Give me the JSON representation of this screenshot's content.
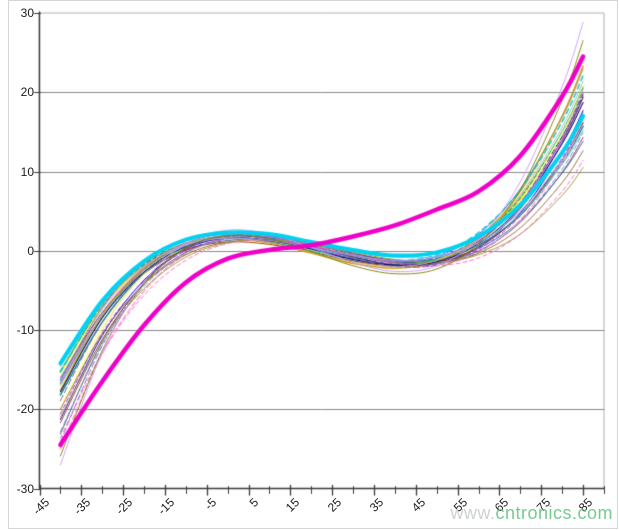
{
  "watermark": {
    "prefix": "www.",
    "main": "cntronics.com",
    "color": "#5fc27e"
  },
  "colors": {
    "background": "#ffffff",
    "plot_border": "#b0b0b0",
    "grid": "#8a8a8a",
    "axis": "#3a3a3a",
    "tick": "#3a3a3a",
    "label": "#1c1c1c",
    "outer_border": "#d6d6d6"
  },
  "chart_data": {
    "type": "line",
    "title": "",
    "xlabel": "",
    "ylabel": "",
    "legend": "none",
    "grid": "horizontal-major",
    "xlim": [
      -45,
      90
    ],
    "ylim": [
      -30,
      30
    ],
    "x_major_tick_step": 10,
    "x_minor_tick_step": 5,
    "y_tick_step": 10,
    "x_tick_values": [
      -45,
      -35,
      -25,
      -15,
      -5,
      5,
      15,
      25,
      35,
      45,
      55,
      65,
      75,
      85
    ],
    "x_tick_labels": [
      "-45",
      "-35",
      "-25",
      "-15",
      "-5",
      "5",
      "15",
      "25",
      "35",
      "45",
      "55",
      "65",
      "75",
      "85"
    ],
    "y_tick_values": [
      30,
      20,
      10,
      0,
      -10,
      -20,
      -30
    ],
    "y_tick_labels": [
      "30",
      "20",
      "10",
      "0",
      "-10",
      "-20",
      "-30"
    ],
    "x": [
      -40,
      -30,
      -20,
      -10,
      0,
      10,
      20,
      30,
      40,
      50,
      60,
      70,
      80,
      85
    ],
    "series": [
      {
        "name": "navy-dashed",
        "color": "#000080",
        "width": 1,
        "dash": [
          5,
          3
        ],
        "values": [
          -14.4,
          -6.5,
          -1.6,
          0.9,
          1.6,
          1.1,
          0.0,
          -1.1,
          -1.6,
          -0.9,
          1.6,
          6.5,
          14.4,
          19.7
        ]
      },
      {
        "name": "purple",
        "color": "#800080",
        "width": 1,
        "dash": [],
        "values": [
          -17.8,
          -8.4,
          -2.4,
          0.8,
          1.9,
          1.6,
          0.5,
          -0.8,
          -1.5,
          -1.1,
          1.2,
          6.0,
          14.0,
          19.4
        ]
      },
      {
        "name": "teal",
        "color": "#008080",
        "width": 1.5,
        "dash": [],
        "values": [
          -18.2,
          -9.0,
          -2.9,
          0.4,
          1.8,
          1.7,
          0.8,
          -0.4,
          -1.2,
          -1.1,
          0.7,
          4.5,
          11.1,
          15.7
        ]
      },
      {
        "name": "yellow",
        "color": "#FFEE00",
        "width": 2,
        "dash": [],
        "values": [
          -15.3,
          -7.0,
          -1.9,
          0.8,
          1.5,
          1.0,
          -0.2,
          -1.4,
          -1.9,
          -1.2,
          1.5,
          6.6,
          14.9,
          20.5
        ]
      },
      {
        "name": "gray",
        "color": "#808080",
        "width": 1,
        "dash": [],
        "values": [
          -16.4,
          -7.8,
          -2.4,
          0.6,
          1.6,
          1.3,
          0.2,
          -0.9,
          -1.6,
          -1.2,
          0.9,
          5.3,
          12.6,
          17.4
        ]
      },
      {
        "name": "black-dashed",
        "color": "#333333",
        "width": 1,
        "dash": [
          4,
          3
        ],
        "values": [
          -15.2,
          -6.9,
          -1.8,
          0.8,
          1.6,
          1.1,
          -0.1,
          -1.3,
          -1.8,
          -1.0,
          1.6,
          6.7,
          15.0,
          20.5
        ]
      },
      {
        "name": "blue",
        "color": "#0000CC",
        "width": 1,
        "dash": [],
        "values": [
          -21.3,
          -10.7,
          -3.7,
          0.2,
          1.7,
          1.6,
          0.5,
          -0.8,
          -1.7,
          -1.6,
          0.4,
          4.8,
          12.5,
          17.7
        ]
      },
      {
        "name": "pale-yellow",
        "color": "#FFFF99",
        "width": 1.5,
        "dash": [],
        "values": [
          -19.9,
          -9.6,
          -3.0,
          0.5,
          1.7,
          1.3,
          0.1,
          -1.3,
          -2.1,
          -1.6,
          0.9,
          6.2,
          14.9,
          20.7
        ]
      },
      {
        "name": "plum",
        "color": "#993366",
        "width": 1,
        "dash": [],
        "values": [
          -21.7,
          -11.2,
          -4.2,
          -0.2,
          1.6,
          1.8,
          0.9,
          -0.3,
          -1.3,
          -1.4,
          0.0,
          3.6,
          9.9,
          14.3
        ]
      },
      {
        "name": "light-blue",
        "color": "#3366FF",
        "width": 1,
        "dash": [],
        "values": [
          -16.3,
          -7.2,
          -1.5,
          1.3,
          2.1,
          1.6,
          0.3,
          -1.0,
          -1.5,
          -0.7,
          2.1,
          7.8,
          16.9,
          22.9
        ]
      },
      {
        "name": "steel",
        "color": "#336699",
        "width": 1,
        "dash": [],
        "values": [
          -16.7,
          -8.3,
          -2.9,
          0.1,
          1.3,
          1.3,
          0.4,
          -0.6,
          -1.4,
          -1.2,
          0.3,
          3.8,
          9.8,
          13.8
        ]
      },
      {
        "name": "tan",
        "color": "#FFCC99",
        "width": 1,
        "dash": [],
        "values": [
          -21.1,
          -10.0,
          -2.9,
          0.9,
          2.3,
          1.9,
          0.5,
          -1.0,
          -1.9,
          -1.3,
          1.4,
          7.1,
          16.5,
          22.9
        ]
      },
      {
        "name": "pink-dashed",
        "color": "#FF99CC",
        "width": 1.5,
        "dash": [
          5,
          3
        ],
        "values": [
          -25.0,
          -13.0,
          -5.1,
          -0.4,
          1.6,
          1.8,
          0.8,
          -0.6,
          -1.7,
          -1.8,
          -0.2,
          3.9,
          11.1,
          16.1
        ]
      },
      {
        "name": "violet-dashed",
        "color": "#9933FF",
        "width": 1,
        "dash": [
          4,
          3
        ],
        "values": [
          -20.6,
          -10.4,
          -3.8,
          0.0,
          1.5,
          1.4,
          0.3,
          -1.0,
          -1.9,
          -1.7,
          0.2,
          4.4,
          11.7,
          16.7
        ]
      },
      {
        "name": "sea-green",
        "color": "#33CC99",
        "width": 1,
        "dash": [],
        "values": [
          -15.1,
          -6.8,
          -1.7,
          1.0,
          1.7,
          1.2,
          0.0,
          -1.2,
          -1.7,
          -1.0,
          1.7,
          6.8,
          15.1,
          20.7
        ]
      },
      {
        "name": "maroon",
        "color": "#993300",
        "width": 1,
        "dash": [],
        "values": [
          -16.0,
          -7.8,
          -2.7,
          0.1,
          1.1,
          0.8,
          -0.2,
          -1.3,
          -1.9,
          -1.5,
          0.5,
          4.6,
          11.5,
          16.2
        ]
      },
      {
        "name": "gold",
        "color": "#CC9900",
        "width": 1.5,
        "dash": [],
        "values": [
          -17.6,
          -8.1,
          -2.2,
          0.8,
          1.6,
          1.0,
          -0.3,
          -1.6,
          -2.2,
          -1.4,
          1.6,
          7.5,
          17.0,
          23.3
        ]
      },
      {
        "name": "slate-dashed",
        "color": "#666699",
        "width": 1,
        "dash": [
          6,
          3
        ],
        "values": [
          -18.9,
          -9.0,
          -2.7,
          0.6,
          1.8,
          1.5,
          0.3,
          -1.0,
          -1.8,
          -1.3,
          1.1,
          6.1,
          14.4,
          20.1
        ]
      },
      {
        "name": "aqua-dashed",
        "color": "#00CCCC",
        "width": 1.5,
        "dash": [
          5,
          4
        ],
        "values": [
          -15.3,
          -6.7,
          -1.3,
          1.5,
          2.3,
          1.7,
          0.5,
          -0.7,
          -1.3,
          -0.5,
          2.3,
          7.7,
          16.3,
          22.1
        ]
      },
      {
        "name": "dark-gray",
        "color": "#4D4D4D",
        "width": 1,
        "dash": [],
        "values": [
          -23.1,
          -11.5,
          -4.0,
          0.3,
          2.0,
          1.9,
          0.7,
          -0.8,
          -1.8,
          -1.6,
          0.5,
          5.4,
          13.7,
          19.3
        ]
      },
      {
        "name": "orchid",
        "color": "#CC66CC",
        "width": 1,
        "dash": [],
        "values": [
          -16.8,
          -7.8,
          -2.1,
          1.0,
          2.1,
          1.7,
          0.7,
          -0.6,
          -1.3,
          -0.8,
          1.4,
          6.0,
          13.6,
          18.7
        ]
      },
      {
        "name": "brown",
        "color": "#996633",
        "width": 1,
        "dash": [],
        "values": [
          -20.0,
          -10.5,
          -4.2,
          -0.5,
          1.1,
          1.2,
          0.5,
          -0.6,
          -1.5,
          -1.6,
          -0.3,
          2.9,
          8.6,
          12.6
        ]
      },
      {
        "name": "steel-dashed",
        "color": "#6699CC",
        "width": 1,
        "dash": [
          5,
          3
        ],
        "values": [
          -22.8,
          -11.8,
          -4.5,
          -0.3,
          1.6,
          1.8,
          0.9,
          -0.4,
          -1.5,
          -1.6,
          -0.1,
          3.7,
          10.3,
          14.9
        ]
      },
      {
        "name": "khaki",
        "color": "#999933",
        "width": 1,
        "dash": [],
        "values": [
          -21.0,
          -11.3,
          -4.8,
          -0.8,
          1.0,
          1.4,
          0.8,
          -0.2,
          -1.1,
          -1.4,
          -0.5,
          2.1,
          7.0,
          10.5
        ]
      },
      {
        "name": "rose-dashed",
        "color": "#FF66CC",
        "width": 1,
        "dash": [
          4,
          3
        ],
        "values": [
          -23.6,
          -12.9,
          -5.6,
          -1.2,
          0.9,
          1.3,
          0.6,
          -0.5,
          -1.6,
          -1.9,
          -0.9,
          2.1,
          7.5,
          11.4
        ]
      },
      {
        "name": "light-turquoise",
        "color": "#66CCCC",
        "width": 1,
        "dash": [],
        "values": [
          -17.0,
          -8.2,
          -2.5,
          0.7,
          2.0,
          1.9,
          1.1,
          -0.1,
          -0.8,
          -0.7,
          0.9,
          4.6,
          10.9,
          15.2
        ]
      },
      {
        "name": "navy",
        "color": "#000080",
        "width": 1,
        "dash": [],
        "values": [
          -17.8,
          -8.5,
          -2.7,
          0.5,
          1.6,
          1.3,
          0.2,
          -1.1,
          -1.8,
          -1.4,
          0.9,
          5.6,
          13.5,
          18.7
        ]
      },
      {
        "name": "silver",
        "color": "#B3B3B3",
        "width": 1,
        "dash": [],
        "values": [
          -16.0,
          -7.4,
          -2.0,
          0.8,
          1.6,
          1.0,
          -0.2,
          -1.4,
          -2.0,
          -1.2,
          1.6,
          7.0,
          15.6,
          21.4
        ]
      },
      {
        "name": "purple-dashed",
        "color": "#9966CC",
        "width": 1,
        "dash": [
          6,
          3
        ],
        "values": [
          -24.1,
          -12.0,
          -4.2,
          0.2,
          1.9,
          1.8,
          0.6,
          -0.9,
          -2.0,
          -1.8,
          0.4,
          5.5,
          14.1,
          20.0
        ]
      },
      {
        "name": "periwinkle",
        "color": "#9999FF",
        "width": 1,
        "dash": [],
        "values": [
          -14.6,
          -6.8,
          -1.9,
          0.7,
          1.6,
          1.3,
          0.4,
          -0.6,
          -1.2,
          -0.8,
          1.0,
          5.0,
          11.5,
          15.9
        ]
      },
      {
        "name": "olive-outlier",
        "color": "#808000",
        "width": 1,
        "dash": [],
        "values": [
          -25.9,
          -12.6,
          -4.2,
          0.4,
          1.9,
          1.5,
          -0.1,
          -1.9,
          -2.9,
          -2.3,
          0.9,
          7.7,
          19.0,
          26.5
        ]
      },
      {
        "name": "lavender-outlier",
        "color": "#CC99FF",
        "width": 1,
        "dash": [],
        "values": [
          -27.0,
          -12.9,
          -3.9,
          0.9,
          2.6,
          2.1,
          0.4,
          -1.5,
          -2.6,
          -1.9,
          1.5,
          8.7,
          20.7,
          28.8
        ]
      },
      {
        "name": "aqua-thick",
        "color": "#00D2F0",
        "width": 4,
        "dash": [],
        "values": [
          -14.2,
          -6.3,
          -1.3,
          1.4,
          2.3,
          2.1,
          1.1,
          0.1,
          -0.6,
          -0.2,
          1.8,
          5.8,
          12.4,
          17.0
        ]
      },
      {
        "name": "magenta-thick",
        "color": "#F000C8",
        "width": 4.5,
        "dash": [],
        "values": [
          -24.5,
          -16.5,
          -9.4,
          -4.0,
          -1.0,
          0.1,
          0.7,
          1.8,
          3.2,
          5.2,
          7.5,
          12.0,
          19.5,
          24.5
        ]
      }
    ]
  }
}
